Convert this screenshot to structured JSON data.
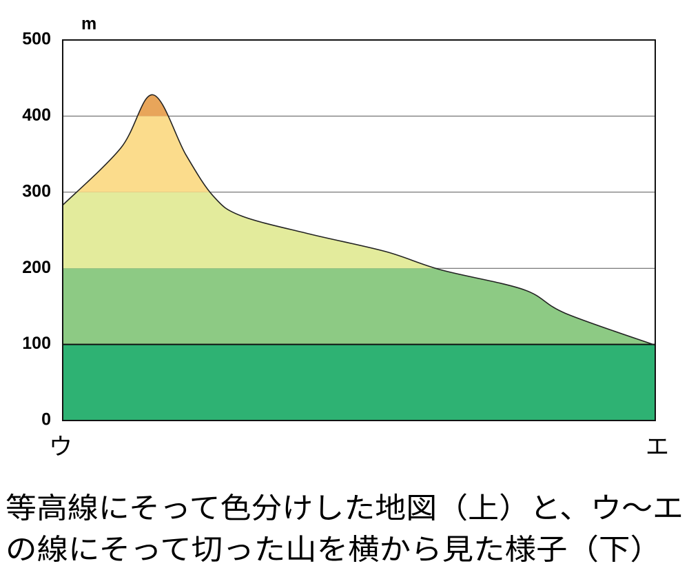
{
  "chart_data": {
    "type": "area",
    "y_unit": "m",
    "x_start_label": "ウ",
    "x_end_label": "エ",
    "caption": [
      "等高線にそって色分けした地図（上）と、ウ〜エ",
      "の線にそって切った山を横から見た様子（下）"
    ],
    "x": [
      0,
      9.8,
      15.2,
      20.8,
      25.4,
      30.1,
      41.7,
      54.5,
      63.8,
      77.8,
      84.8,
      100
    ],
    "values": [
      283,
      358,
      428,
      349,
      295,
      269,
      245,
      222,
      198,
      172,
      141,
      99
    ],
    "xlim": [
      0,
      100
    ],
    "ylim": [
      0,
      500
    ],
    "yticks": [
      0,
      100,
      200,
      300,
      400,
      500
    ],
    "grid": true,
    "bands": [
      {
        "from": 0,
        "to": 100,
        "color": "#2eb273"
      },
      {
        "from": 100,
        "to": 200,
        "color": "#8dca84"
      },
      {
        "from": 200,
        "to": 300,
        "color": "#e3eb9c"
      },
      {
        "from": 300,
        "to": 400,
        "color": "#fbdc8c"
      },
      {
        "from": 400,
        "to": 500,
        "color": "#e8a55a"
      }
    ]
  }
}
